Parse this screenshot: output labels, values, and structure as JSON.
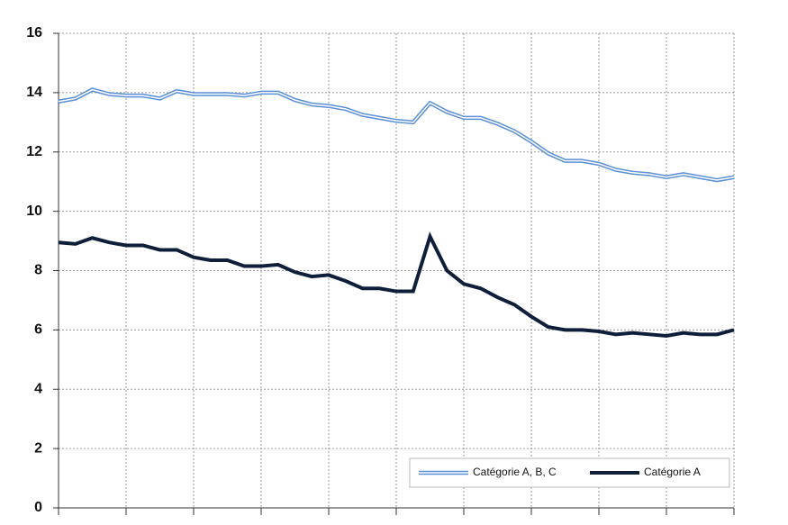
{
  "chart_data": {
    "type": "line",
    "categories": [
      null,
      null,
      null,
      null,
      null,
      null,
      null,
      null,
      null,
      null,
      null,
      null,
      null,
      null,
      null,
      null,
      null,
      null,
      null,
      null,
      null,
      null,
      null,
      null,
      null,
      null,
      null,
      null,
      null,
      null,
      null,
      null,
      null,
      null,
      null,
      null,
      null,
      null,
      null,
      null,
      null
    ],
    "series": [
      {
        "name": "Catégorie A, B, C",
        "color": "#5b8fd6",
        "style": "double",
        "values": [
          13.7,
          13.8,
          14.1,
          13.95,
          13.9,
          13.9,
          13.8,
          14.05,
          13.95,
          13.95,
          13.95,
          13.9,
          14.0,
          14.0,
          13.75,
          13.6,
          13.55,
          13.45,
          13.25,
          13.15,
          13.05,
          13.0,
          13.65,
          13.35,
          13.15,
          13.15,
          12.95,
          12.7,
          12.35,
          11.95,
          11.7,
          11.7,
          11.6,
          11.4,
          11.3,
          11.25,
          11.15,
          11.25,
          11.15,
          11.05,
          11.15
        ]
      },
      {
        "name": "Catégorie A",
        "color": "#0f1f3a",
        "style": "solid",
        "values": [
          8.95,
          8.9,
          9.1,
          8.95,
          8.85,
          8.85,
          8.7,
          8.7,
          8.45,
          8.35,
          8.35,
          8.15,
          8.15,
          8.2,
          7.95,
          7.8,
          7.85,
          7.65,
          7.4,
          7.4,
          7.3,
          7.3,
          9.15,
          8.0,
          7.55,
          7.4,
          7.1,
          6.85,
          6.45,
          6.1,
          6.0,
          6.0,
          5.95,
          5.85,
          5.9,
          5.85,
          5.8,
          5.9,
          5.85,
          5.85,
          6.0
        ]
      }
    ],
    "ylim": [
      0,
      16
    ],
    "yticks": [
      0,
      2,
      4,
      6,
      8,
      10,
      12,
      14,
      16
    ],
    "grid": true,
    "legend": "lower-right"
  }
}
